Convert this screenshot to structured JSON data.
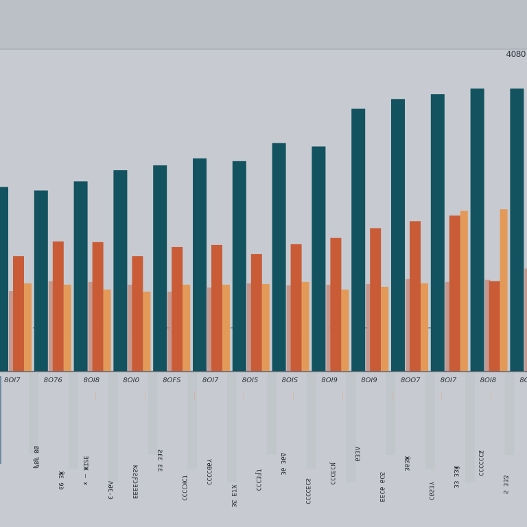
{
  "chart_data": {
    "type": "bar",
    "title": "",
    "xlabel": "",
    "ylabel": "",
    "y_top_label": "4080",
    "ylim": [
      0,
      4080
    ],
    "grid": true,
    "legend": "none",
    "categories": [
      "2017",
      "2016",
      "2018",
      "2010",
      "2015",
      "2017",
      "2015",
      "2015",
      "2019",
      "2019",
      "2007",
      "2017",
      "2018",
      "20"
    ],
    "category_display": [
      "8OI7",
      "8O76",
      "8OI8",
      "8OI0",
      "8OFS",
      "8OI7",
      "8OI5",
      "8OIS",
      "8OI9",
      "8OI9",
      "8OO7",
      "8OI7",
      "8OI8",
      "8O"
    ],
    "series": [
      {
        "name": "Series A",
        "color": "#12535f",
        "values": [
          2640,
          2590,
          2720,
          2880,
          2950,
          3050,
          3010,
          3270,
          3220,
          3760,
          3900,
          3970,
          4050,
          4050
        ]
      },
      {
        "name": "Series B",
        "color": "#c95c36",
        "values": [
          1650,
          1860,
          1850,
          1650,
          1780,
          1810,
          1680,
          1820,
          1910,
          2050,
          2150,
          2230,
          1290,
          3080
        ]
      },
      {
        "name": "Series C",
        "color": "#e39a58",
        "values": [
          1260,
          1240,
          1170,
          1140,
          1240,
          1240,
          1250,
          1280,
          1170,
          1210,
          1260,
          2300,
          2320,
          1440
        ]
      }
    ],
    "ghost_bars": {
      "color": "#c38777",
      "values": [
        1150,
        1290,
        1280,
        1240,
        1140,
        1200,
        1260,
        1230,
        1240,
        1250,
        1320,
        1280,
        1310,
        1470
      ]
    },
    "reference_line": 620,
    "rotated_labels": [
      "Ø8 Ϡ8Ϡ",
      "ӜƐ 9Ͽ",
      "ƎSƩЖ — ɤ",
      "ΛƏƐ-Ͽ",
      "ƘƧƧƑƆƎƎƎƎ",
      "Ƨ£Ɛ ƐƐ",
      "ƖƆƘƆƆƆƆ",
      "ƳƏƉƆƆƆƆ",
      "ӾƖƎ ӠƐ",
      "ƖƑƐƆƆƆ",
      "ΔƏƐ ƏƐ",
      "ƧƆƎƆƆƆƆ",
      "ƝƆƎƆƆƆ",
      "ΛƐƐƏ",
      "ƷƆƏ ƏƆƎƎ",
      "ӁƐƏƐ",
      "ƳƐƧƏƆ",
      "ӁƐƐ ƐƐ",
      "ƵƆƆƆƆƆƆ",
      "ƸƐƐ Ƨ"
    ]
  }
}
